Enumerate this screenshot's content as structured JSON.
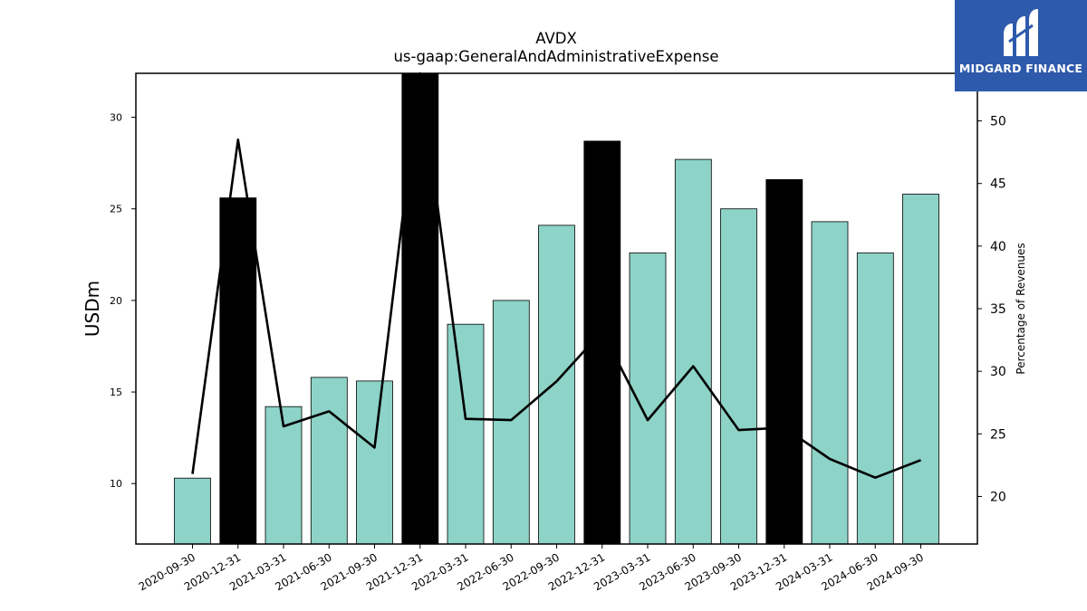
{
  "chart_data": {
    "type": "bar+line",
    "title": "AVDX",
    "subtitle": "us-gaap:GeneralAndAdministrativeExpense",
    "ylabel": "USDm",
    "y2label": "Percentage of Revenues",
    "ylim": [
      6.7,
      32.4
    ],
    "y2lim": [
      16.2,
      53.8
    ],
    "yticks": [
      10,
      15,
      20,
      25,
      30
    ],
    "y2ticks": [
      20,
      25,
      30,
      35,
      40,
      45,
      50
    ],
    "categories": [
      "2020-09-30",
      "2020-12-31",
      "2021-03-31",
      "2021-06-30",
      "2021-09-30",
      "2021-12-31",
      "2022-03-31",
      "2022-06-30",
      "2022-09-30",
      "2022-12-31",
      "2023-03-31",
      "2023-06-30",
      "2023-09-30",
      "2023-12-31",
      "2024-03-31",
      "2024-06-30",
      "2024-09-30"
    ],
    "series": [
      {
        "kind": "bar",
        "values": [
          10.3,
          25.6,
          14.2,
          15.8,
          15.6,
          32.4,
          18.7,
          20.0,
          24.1,
          28.7,
          22.6,
          27.7,
          25.0,
          26.6,
          24.3,
          22.6,
          25.8
        ],
        "highlight": [
          false,
          true,
          false,
          false,
          false,
          true,
          false,
          false,
          false,
          true,
          false,
          false,
          false,
          true,
          false,
          false,
          false
        ]
      },
      {
        "kind": "line",
        "axis": "right",
        "values": [
          21.8,
          48.5,
          25.6,
          26.8,
          23.9,
          53.8,
          26.2,
          26.1,
          29.2,
          33.2,
          26.1,
          30.4,
          25.3,
          25.5,
          23.0,
          21.5,
          22.9
        ]
      }
    ],
    "colors": {
      "bar": "#8dd3c7",
      "highlight": "#000000",
      "line": "#000000",
      "bar_edge": "#000000"
    },
    "grid": false
  },
  "logo": {
    "text": "MIDGARD FINANCE",
    "background": "#2e5aac"
  }
}
